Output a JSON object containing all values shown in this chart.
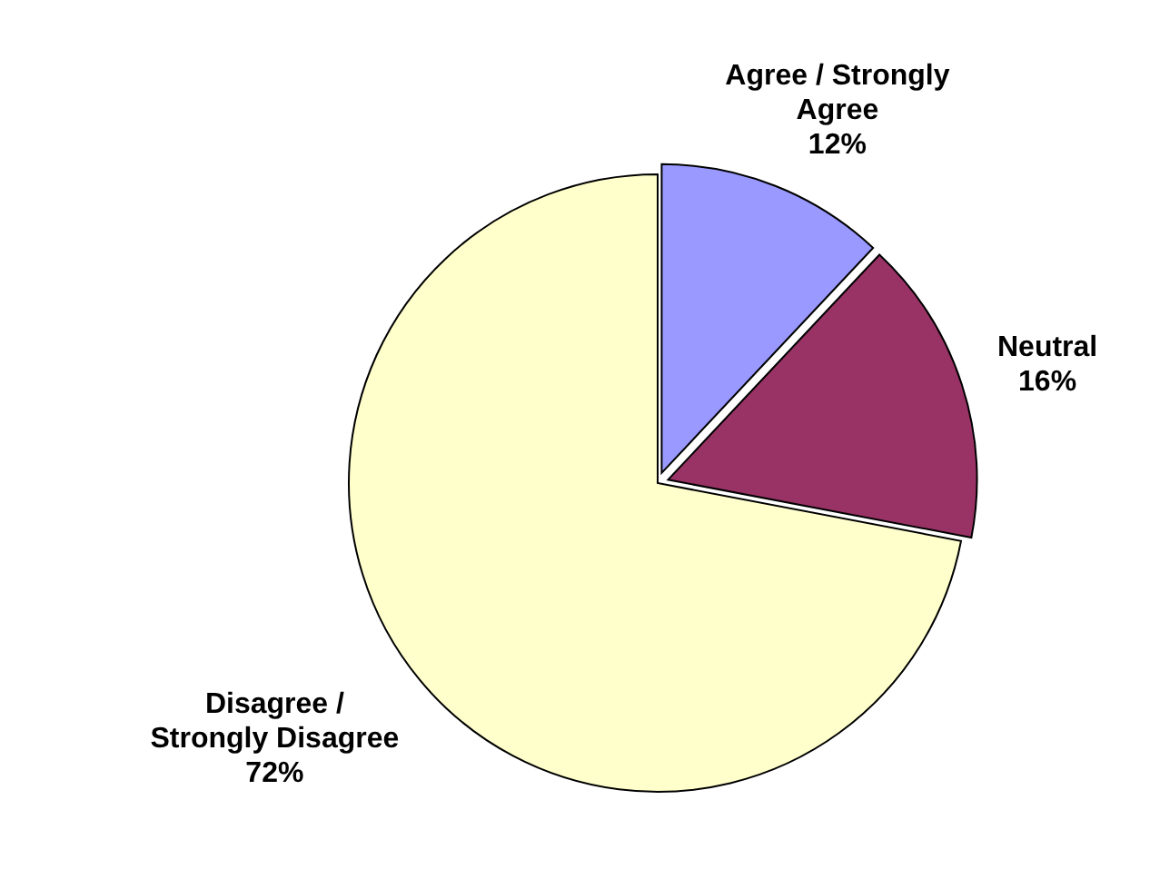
{
  "chart_data": {
    "type": "pie",
    "categories": [
      "Agree / Strongly Agree",
      "Neutral",
      "Disagree / Strongly Disagree"
    ],
    "values": [
      12,
      16,
      72
    ],
    "colors": [
      "#9999ff",
      "#993366",
      "#ffffcc"
    ],
    "value_labels": [
      "12%",
      "16%",
      "72%"
    ]
  }
}
